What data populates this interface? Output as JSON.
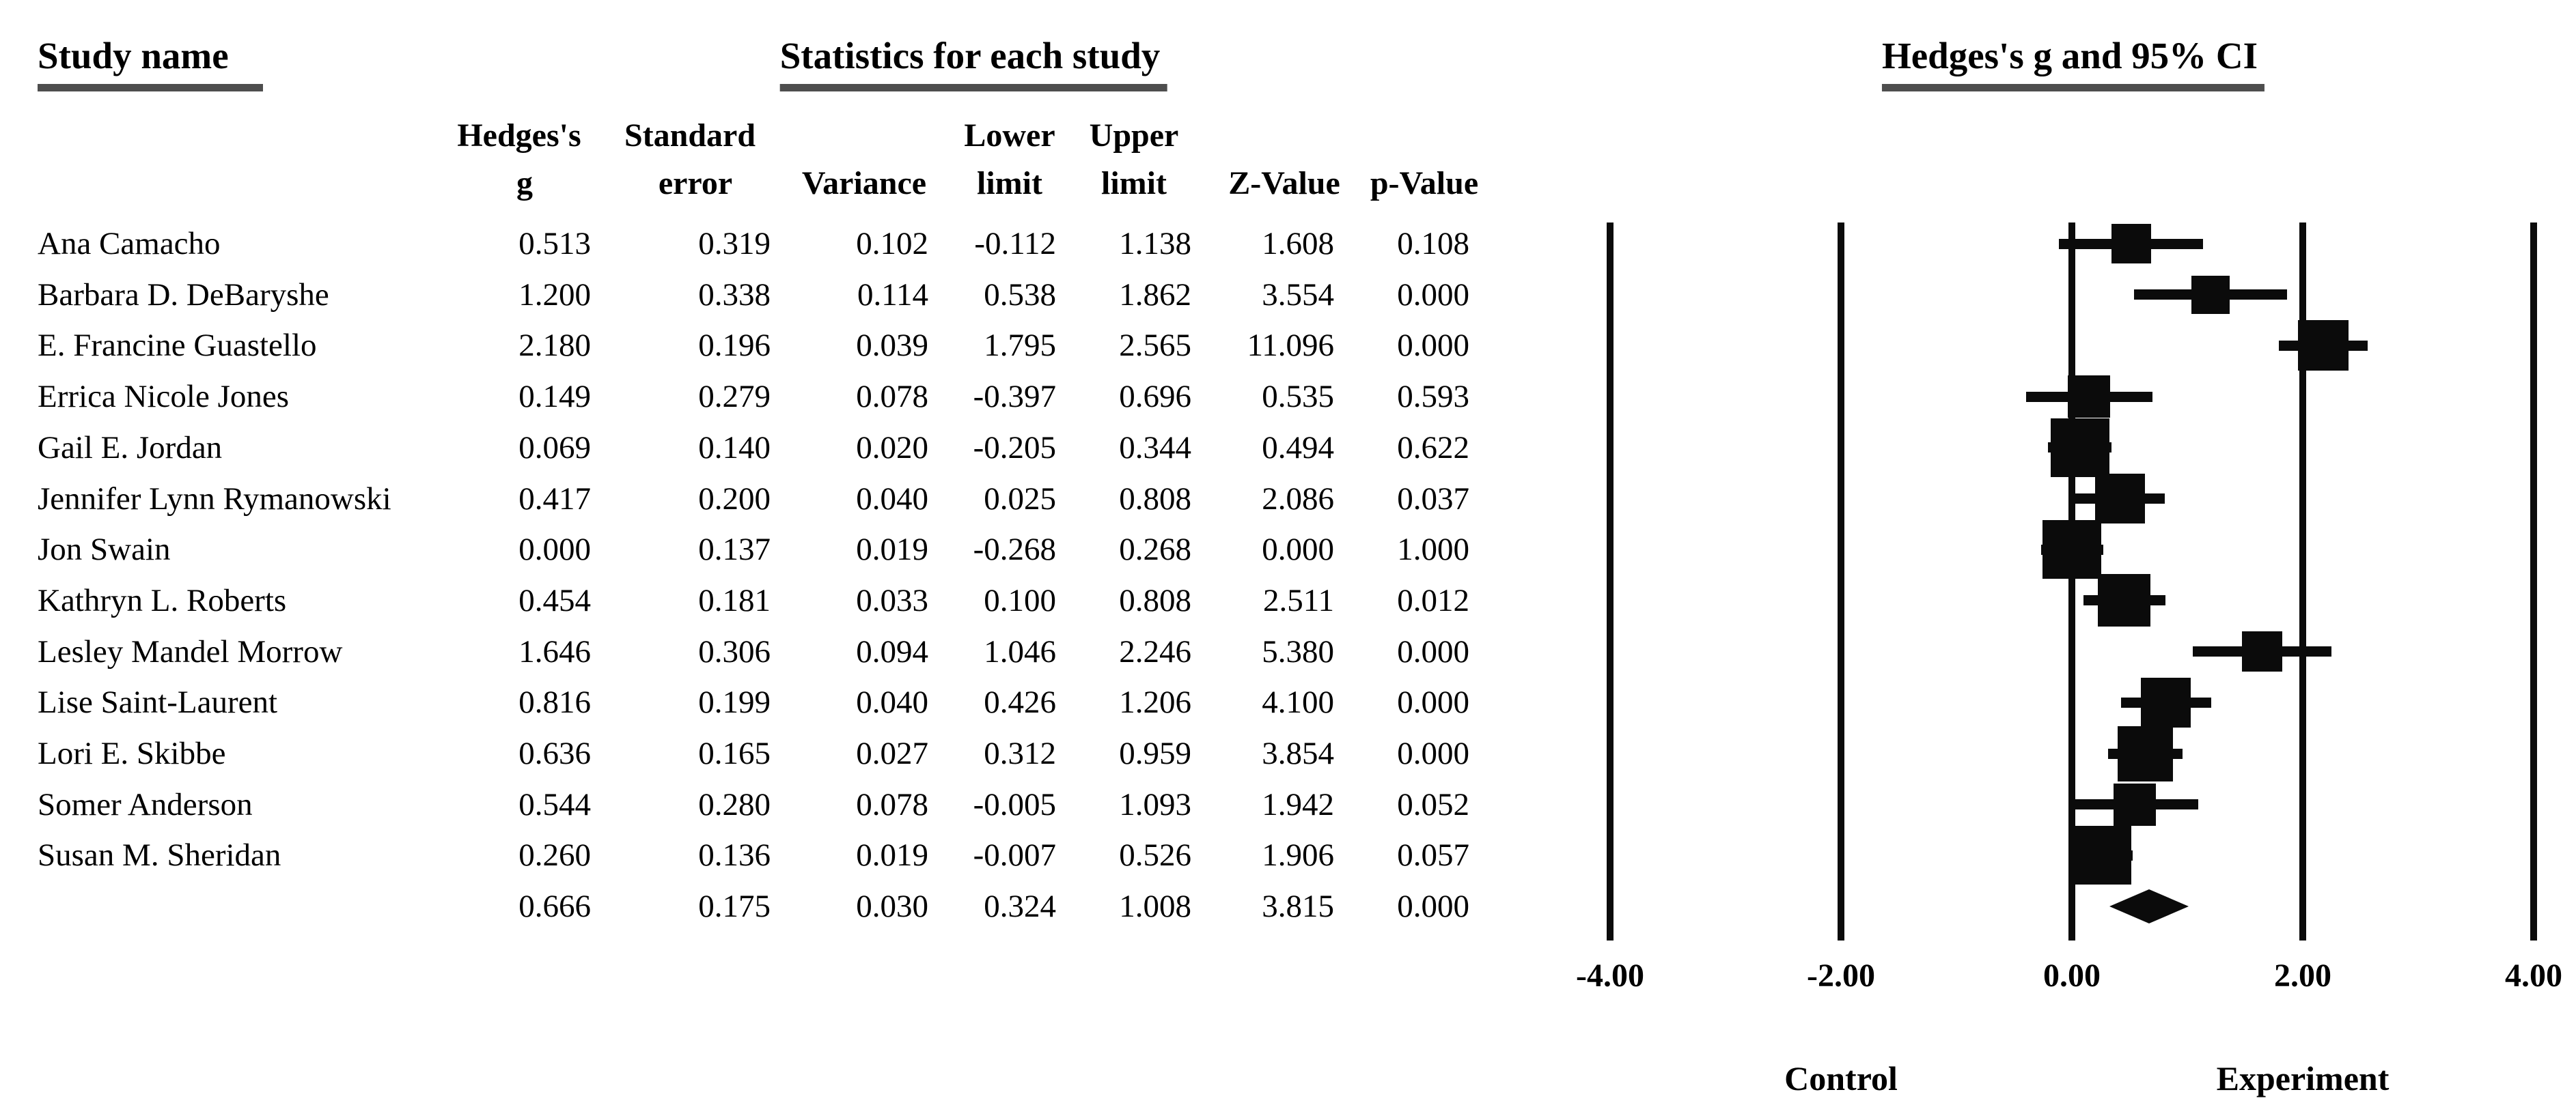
{
  "titles": {
    "study_column": "Study name",
    "stats_section": "Statistics for each study",
    "plot_section": "Hedges's g and 95% CI"
  },
  "table": {
    "subheaders_line1": [
      "Hedges's",
      "Standard",
      "Lower",
      "Upper"
    ],
    "subheaders_line2": [
      "g",
      "error",
      "Variance",
      "limit",
      "limit",
      "Z-Value",
      "p-Value"
    ],
    "decimals": 3
  },
  "axis": {
    "ticks": [
      "-4.00",
      "-2.00",
      "0.00",
      "2.00",
      "4.00"
    ],
    "tick_values": [
      -4,
      -2,
      0,
      2,
      4
    ],
    "left_group_label": "Control",
    "right_group_label": "Experiment"
  },
  "colors": {
    "ink": "#0b0b0b",
    "underline": "#4e4e4e",
    "background": "#ffffff"
  },
  "chart_data": {
    "type": "forest",
    "title": "Hedges's g and 95% CI",
    "xlabel": "Hedges's g",
    "xlim": [
      -4,
      4
    ],
    "xticks": [
      -4,
      -2,
      0,
      2,
      4
    ],
    "grid": false,
    "left_group": "Control",
    "right_group": "Experiment",
    "studies": [
      {
        "name": "Ana Camacho",
        "g": 0.513,
        "se": 0.319,
        "variance": 0.102,
        "lower": -0.112,
        "upper": 1.138,
        "z": 1.608,
        "p": 0.108
      },
      {
        "name": "Barbara D. DeBaryshe",
        "g": 1.2,
        "se": 0.338,
        "variance": 0.114,
        "lower": 0.538,
        "upper": 1.862,
        "z": 3.554,
        "p": 0.0
      },
      {
        "name": "E. Francine Guastello",
        "g": 2.18,
        "se": 0.196,
        "variance": 0.039,
        "lower": 1.795,
        "upper": 2.565,
        "z": 11.096,
        "p": 0.0
      },
      {
        "name": "Errica Nicole Jones",
        "g": 0.149,
        "se": 0.279,
        "variance": 0.078,
        "lower": -0.397,
        "upper": 0.696,
        "z": 0.535,
        "p": 0.593
      },
      {
        "name": "Gail E. Jordan",
        "g": 0.069,
        "se": 0.14,
        "variance": 0.02,
        "lower": -0.205,
        "upper": 0.344,
        "z": 0.494,
        "p": 0.622
      },
      {
        "name": "Jennifer Lynn Rymanowski",
        "g": 0.417,
        "se": 0.2,
        "variance": 0.04,
        "lower": 0.025,
        "upper": 0.808,
        "z": 2.086,
        "p": 0.037
      },
      {
        "name": "Jon Swain",
        "g": 0.0,
        "se": 0.137,
        "variance": 0.019,
        "lower": -0.268,
        "upper": 0.268,
        "z": 0.0,
        "p": 1.0
      },
      {
        "name": "Kathryn L. Roberts",
        "g": 0.454,
        "se": 0.181,
        "variance": 0.033,
        "lower": 0.1,
        "upper": 0.808,
        "z": 2.511,
        "p": 0.012
      },
      {
        "name": "Lesley Mandel Morrow",
        "g": 1.646,
        "se": 0.306,
        "variance": 0.094,
        "lower": 1.046,
        "upper": 2.246,
        "z": 5.38,
        "p": 0.0
      },
      {
        "name": "Lise Saint-Laurent",
        "g": 0.816,
        "se": 0.199,
        "variance": 0.04,
        "lower": 0.426,
        "upper": 1.206,
        "z": 4.1,
        "p": 0.0
      },
      {
        "name": "Lori E. Skibbe",
        "g": 0.636,
        "se": 0.165,
        "variance": 0.027,
        "lower": 0.312,
        "upper": 0.959,
        "z": 3.854,
        "p": 0.0
      },
      {
        "name": "Somer Anderson",
        "g": 0.544,
        "se": 0.28,
        "variance": 0.078,
        "lower": -0.005,
        "upper": 1.093,
        "z": 1.942,
        "p": 0.052
      },
      {
        "name": "Susan M. Sheridan",
        "g": 0.26,
        "se": 0.136,
        "variance": 0.019,
        "lower": -0.007,
        "upper": 0.526,
        "z": 1.906,
        "p": 0.057
      }
    ],
    "summary": {
      "g": 0.666,
      "se": 0.175,
      "variance": 0.03,
      "lower": 0.324,
      "upper": 1.008,
      "z": 3.815,
      "p": 0.0
    }
  }
}
